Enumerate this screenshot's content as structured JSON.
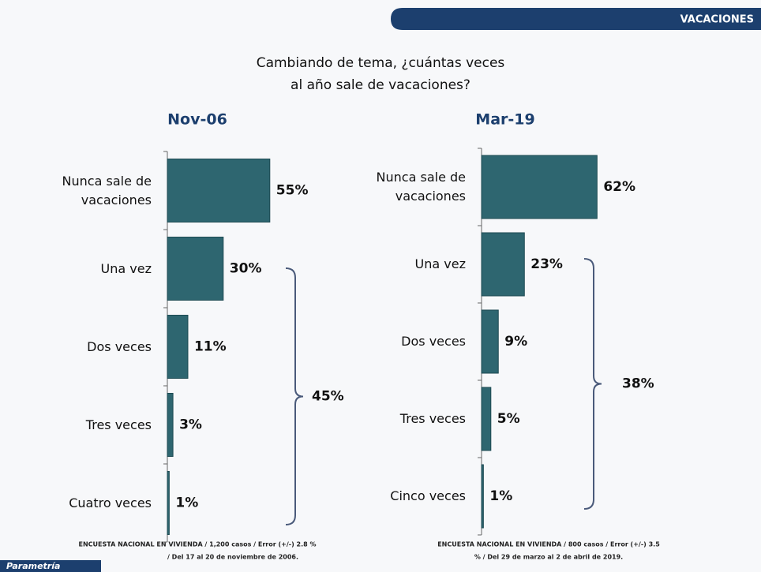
{
  "header": {
    "section": "VACACIONES"
  },
  "question": [
    "Cambiando de tema, ¿cuántas veces",
    "al año sale de vacaciones?"
  ],
  "chart_data": [
    {
      "type": "bar",
      "title": "Nov-06",
      "categories": [
        "Nunca sale de vacaciones",
        "Una vez",
        "Dos veces",
        "Tres veces",
        "Cuatro veces"
      ],
      "values": [
        55,
        30,
        11,
        3,
        1
      ],
      "value_labels": [
        "55%",
        "30%",
        "11%",
        "3%",
        "1%"
      ],
      "color": "#2e6670",
      "annotation": "45%"
    },
    {
      "type": "bar",
      "title": "Mar-19",
      "categories": [
        "Nunca sale de vacaciones",
        "Una vez",
        "Dos veces",
        "Tres veces",
        "Cinco veces"
      ],
      "values": [
        62,
        23,
        9,
        5,
        1
      ],
      "value_labels": [
        "62%",
        "23%",
        "9%",
        "5%",
        "1%"
      ],
      "color": "#2e6670",
      "annotation": "38%"
    }
  ],
  "footnotes": [
    [
      "ENCUESTA NACIONAL EN VIVIENDA / 1,200 casos / Error (+/-) 2.8 %",
      "/ Del 17 al 20 de noviembre de 2006."
    ],
    [
      "ENCUESTA NACIONAL EN VIVIENDA / 800 casos / Error (+/-) 3.5",
      "% / Del 29 de marzo al 2 de abril de 2019."
    ]
  ],
  "logo": "Parametría"
}
